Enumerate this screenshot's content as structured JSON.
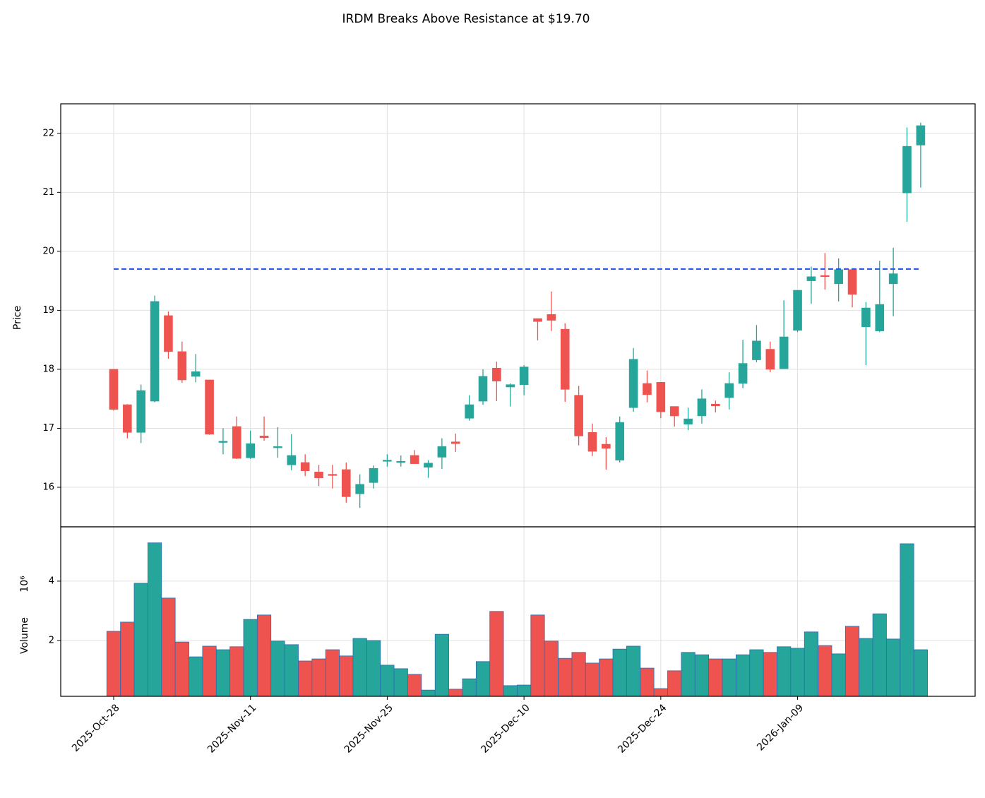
{
  "chart_data": {
    "type": "candlestick",
    "title": "IRDM Breaks Above Resistance at $19.70",
    "categories": [
      "2025-Oct-28",
      null,
      null,
      null,
      null,
      null,
      null,
      null,
      null,
      null,
      "2025-Nov-11",
      null,
      null,
      null,
      null,
      null,
      null,
      null,
      null,
      null,
      "2025-Nov-25",
      null,
      null,
      null,
      null,
      null,
      null,
      null,
      null,
      null,
      "2025-Dec-10",
      null,
      null,
      null,
      null,
      null,
      null,
      null,
      null,
      null,
      "2025-Dec-24",
      null,
      null,
      null,
      null,
      null,
      null,
      null,
      null,
      null,
      "2026-Jan-09",
      null,
      null,
      null,
      null,
      null,
      null,
      null,
      null,
      null
    ],
    "xlim": [
      -3.87,
      62.98
    ],
    "open": [
      18.0,
      17.4,
      16.93,
      17.46,
      18.91,
      18.3,
      17.88,
      17.82,
      16.76,
      17.03,
      16.5,
      16.87,
      16.67,
      16.38,
      16.42,
      16.26,
      16.22,
      16.3,
      15.89,
      16.08,
      16.44,
      16.42,
      16.54,
      16.34,
      16.51,
      16.77,
      17.17,
      17.46,
      18.02,
      17.7,
      17.74,
      18.86,
      18.93,
      18.68,
      17.56,
      16.93,
      16.73,
      16.46,
      17.35,
      17.76,
      17.78,
      17.37,
      17.07,
      17.21,
      17.41,
      17.52,
      17.76,
      18.16,
      18.34,
      18.01,
      18.66,
      19.5,
      19.59,
      19.45,
      19.69,
      18.72,
      18.65,
      19.45,
      20.99,
      21.8
    ],
    "high": [
      18.0,
      17.41,
      17.74,
      19.25,
      18.98,
      18.47,
      18.26,
      17.82,
      17.0,
      17.2,
      16.96,
      17.2,
      17.02,
      16.9,
      16.56,
      16.38,
      16.38,
      16.42,
      16.22,
      16.37,
      16.56,
      16.54,
      16.63,
      16.46,
      16.83,
      16.91,
      17.56,
      18.0,
      18.13,
      17.76,
      18.07,
      18.86,
      19.32,
      18.78,
      17.72,
      17.08,
      16.85,
      17.2,
      18.36,
      17.98,
      17.78,
      17.37,
      17.35,
      17.66,
      17.47,
      17.95,
      18.5,
      18.75,
      18.47,
      19.17,
      19.34,
      19.74,
      19.97,
      19.88,
      19.69,
      19.14,
      19.84,
      20.06,
      22.1,
      22.18
    ],
    "low": [
      17.3,
      16.83,
      16.75,
      17.44,
      18.18,
      17.77,
      17.78,
      16.89,
      16.56,
      16.48,
      16.48,
      16.79,
      16.5,
      16.29,
      16.19,
      16.02,
      15.98,
      15.74,
      15.65,
      15.98,
      16.35,
      16.35,
      16.4,
      16.16,
      16.31,
      16.6,
      17.13,
      17.4,
      17.46,
      17.37,
      17.56,
      18.49,
      18.65,
      17.45,
      16.71,
      16.53,
      16.3,
      16.42,
      17.28,
      17.44,
      17.17,
      17.03,
      16.97,
      17.08,
      17.27,
      17.32,
      17.68,
      18.12,
      17.95,
      18.01,
      18.63,
      19.11,
      19.35,
      19.15,
      19.05,
      18.07,
      18.63,
      18.9,
      20.5,
      21.08
    ],
    "close": [
      17.32,
      16.93,
      17.64,
      19.15,
      18.3,
      17.82,
      17.96,
      16.9,
      16.78,
      16.49,
      16.74,
      16.84,
      16.69,
      16.54,
      16.28,
      16.16,
      16.2,
      15.84,
      16.05,
      16.32,
      16.46,
      16.44,
      16.4,
      16.41,
      16.69,
      16.74,
      17.4,
      17.88,
      17.8,
      17.74,
      18.04,
      18.81,
      18.83,
      17.66,
      16.87,
      16.61,
      16.66,
      17.1,
      18.17,
      17.57,
      17.28,
      17.21,
      17.16,
      17.5,
      17.38,
      17.76,
      18.1,
      18.48,
      18.0,
      18.55,
      19.34,
      19.57,
      19.57,
      19.69,
      19.27,
      19.04,
      19.1,
      19.62,
      21.78,
      22.13
    ],
    "up_color": "#26a69a",
    "down_color": "#ef5350",
    "ylabel": "Price",
    "ylim": [
      15.33,
      22.5
    ],
    "yticks": [
      16,
      17,
      18,
      19,
      20,
      21,
      22
    ],
    "grid": true,
    "resistance": {
      "value": 19.7,
      "color": "#2a5bea",
      "style": "dashed"
    },
    "volume": {
      "ylabel": "Volume",
      "offset_label": "10⁶",
      "edge_color": "#2b6cb0",
      "values": [
        2.31,
        2.62,
        3.93,
        5.29,
        3.43,
        1.95,
        1.45,
        1.81,
        1.69,
        1.79,
        2.71,
        2.86,
        1.98,
        1.86,
        1.31,
        1.38,
        1.69,
        1.48,
        2.07,
        2.0,
        1.17,
        1.05,
        0.86,
        0.33,
        2.21,
        0.36,
        0.71,
        1.29,
        2.98,
        0.48,
        0.5,
        2.86,
        1.98,
        1.4,
        1.6,
        1.24,
        1.38,
        1.71,
        1.81,
        1.07,
        0.38,
        0.98,
        1.6,
        1.52,
        1.38,
        1.38,
        1.52,
        1.69,
        1.6,
        1.79,
        1.74,
        2.29,
        1.83,
        1.55,
        2.48,
        2.07,
        2.9,
        2.05,
        5.26,
        1.69
      ],
      "ylim": [
        0.12,
        5.83
      ],
      "yticks": [
        2,
        4
      ]
    }
  }
}
